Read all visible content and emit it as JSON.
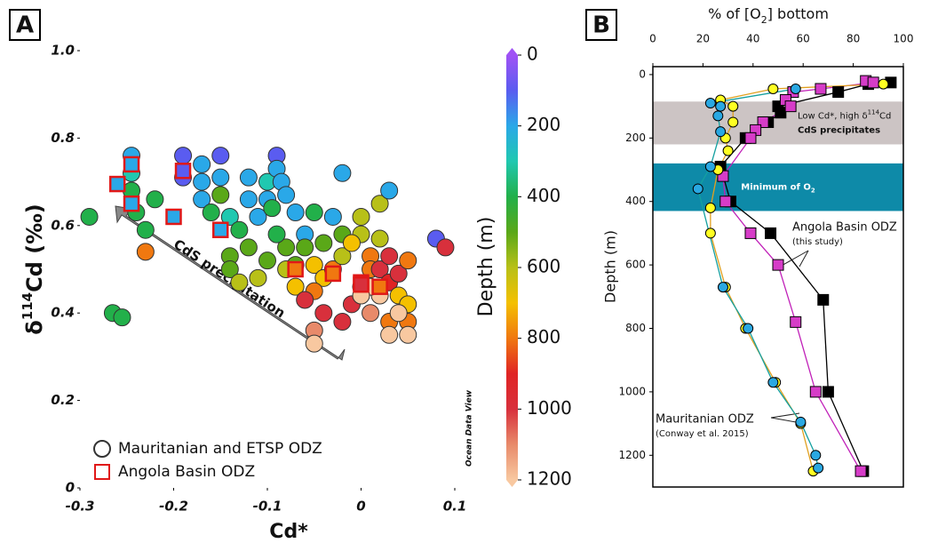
{
  "chart_data": [
    {
      "type": "scatter",
      "panel_label": "A",
      "x_label": "Cd*",
      "y_label": [
        "δ",
        "114",
        "Cd (‰)"
      ],
      "xlim": [
        -0.3,
        0.1
      ],
      "xticks": [
        -0.3,
        -0.2,
        -0.1,
        0,
        0.1
      ],
      "ylim": [
        0,
        1
      ],
      "yticks": [
        0,
        0.2,
        0.4,
        0.6,
        0.8,
        {
          "value": 1,
          "label": "1.0"
        }
      ],
      "colorbar_label": "Depth (m)",
      "clim": [
        0,
        1200
      ],
      "cticks": [
        0,
        200,
        400,
        600,
        800,
        1000,
        1200
      ],
      "colormap": [
        "#a052f5",
        "#5a5cf0",
        "#2aa8e8",
        "#20c8b0",
        "#22b04a",
        "#5aa818",
        "#b8c018",
        "#f4c000",
        "#f07810",
        "#e02424",
        "#d8303c",
        "#e88a6a",
        "#f8c8a0"
      ],
      "annotations": [
        "CdS precipitation",
        "Ocean Data View"
      ],
      "legend": "lower left",
      "series": [
        {
          "name": "Mauritanian and ETSP ODZ",
          "marker": "circle",
          "color": "#333333",
          "x": [
            -0.29,
            -0.265,
            -0.255,
            -0.245,
            -0.245,
            -0.245,
            -0.24,
            -0.23,
            -0.22,
            -0.23,
            -0.19,
            -0.19,
            -0.17,
            -0.17,
            -0.17,
            -0.15,
            -0.15,
            -0.15,
            -0.16,
            -0.14,
            -0.13,
            -0.12,
            -0.12,
            -0.1,
            -0.09,
            -0.09,
            -0.085,
            -0.1,
            -0.11,
            -0.095,
            -0.08,
            -0.07,
            -0.12,
            -0.14,
            -0.14,
            -0.13,
            -0.11,
            -0.1,
            -0.08,
            -0.09,
            -0.06,
            -0.06,
            -0.05,
            -0.04,
            -0.05,
            -0.03,
            -0.02,
            -0.02,
            -0.03,
            -0.05,
            -0.02,
            0,
            0,
            0.01,
            0.01,
            0,
            -0.01,
            -0.02,
            -0.04,
            -0.05,
            -0.05,
            0.01,
            0.02,
            0.02,
            0.02,
            0.02,
            0.03,
            0.03,
            0.03,
            0.03,
            0.03,
            0.04,
            0.04,
            0.05,
            0.05,
            0.05,
            0.05,
            0.08,
            0.09,
            -0.07,
            -0.06,
            -0.07,
            -0.04,
            -0.01,
            0.01,
            0,
            -0.08,
            0.04
          ],
          "values": [
            0.62,
            0.4,
            0.39,
            0.76,
            0.72,
            0.68,
            0.63,
            0.59,
            0.66,
            0.54,
            0.76,
            0.71,
            0.74,
            0.7,
            0.66,
            0.76,
            0.71,
            0.67,
            0.63,
            0.62,
            0.59,
            0.71,
            0.66,
            0.7,
            0.76,
            0.73,
            0.7,
            0.66,
            0.62,
            0.64,
            0.67,
            0.63,
            0.55,
            0.53,
            0.5,
            0.47,
            0.48,
            0.52,
            0.55,
            0.58,
            0.58,
            0.55,
            0.51,
            0.48,
            0.45,
            0.5,
            0.53,
            0.58,
            0.62,
            0.63,
            0.72,
            0.62,
            0.58,
            0.53,
            0.5,
            0.46,
            0.42,
            0.38,
            0.4,
            0.36,
            0.33,
            0.4,
            0.57,
            0.5,
            0.44,
            0.65,
            0.68,
            0.53,
            0.47,
            0.38,
            0.35,
            0.44,
            0.49,
            0.52,
            0.42,
            0.38,
            0.35,
            0.57,
            0.55,
            0.46,
            0.43,
            0.51,
            0.56,
            0.56,
            0.46,
            0.44,
            0.5,
            0.4
          ],
          "depth": [
            350,
            380,
            380,
            200,
            300,
            350,
            380,
            380,
            380,
            800,
            100,
            120,
            150,
            150,
            150,
            100,
            200,
            450,
            350,
            300,
            350,
            200,
            200,
            250,
            120,
            150,
            200,
            150,
            180,
            350,
            200,
            200,
            450,
            500,
            480,
            600,
            550,
            480,
            500,
            350,
            150,
            450,
            700,
            650,
            750,
            800,
            550,
            500,
            180,
            350,
            150,
            550,
            600,
            800,
            820,
            850,
            1000,
            1000,
            1000,
            1050,
            1200,
            1050,
            600,
            1000,
            1200,
            600,
            150,
            1000,
            900,
            800,
            1200,
            650,
            950,
            800,
            700,
            800,
            1200,
            120,
            1000,
            650,
            1000,
            500,
            500,
            700,
            1200,
            1200,
            550,
            1200
          ]
        },
        {
          "name": "Angola Basin ODZ",
          "marker": "square",
          "color": "#e01818",
          "x": [
            -0.26,
            -0.245,
            -0.245,
            -0.19,
            -0.2,
            -0.15,
            -0.07,
            -0.03,
            0,
            0,
            0.02
          ],
          "values": [
            0.695,
            0.74,
            0.65,
            0.725,
            0.62,
            0.59,
            0.5,
            0.49,
            0.47,
            0.465,
            0.46
          ],
          "depth": [
            200,
            150,
            200,
            100,
            150,
            200,
            800,
            800,
            900,
            1000,
            800
          ]
        }
      ]
    },
    {
      "type": "line",
      "panel_label": "B",
      "x_label": [
        "% of [O",
        "2",
        "] bottom"
      ],
      "y_label": "Depth (m)",
      "xlim": [
        0,
        100
      ],
      "xticks": [
        0,
        20,
        40,
        60,
        80,
        100
      ],
      "ylim": [
        -25,
        1300
      ],
      "yticks": [
        0,
        200,
        400,
        600,
        800,
        1000,
        1200
      ],
      "y_inverted": true,
      "bands": [
        {
          "range": [
            85,
            220
          ],
          "color": "#ccc4c4",
          "labels": [
            [
              "Low Cd*, high δ",
              "114",
              "Cd"
            ],
            [
              "CdS precipitates"
            ]
          ]
        },
        {
          "range": [
            280,
            430
          ],
          "color": "#0e8aa8",
          "labels": [
            [
              "Minimum of O",
              "2"
            ]
          ]
        }
      ],
      "annotations": [
        [
          "Angola Basin ODZ",
          "(this study)"
        ],
        [
          "Mauritanian ODZ",
          "(Conway et al. 2015)"
        ]
      ],
      "series": [
        {
          "name": "Angola Basin ODZ black",
          "marker": "square",
          "color": "#000000",
          "line_color": "#000000",
          "x": [
            95,
            86,
            74,
            50,
            51,
            46,
            37,
            27,
            31,
            47,
            68,
            70,
            84
          ],
          "values": [
            25,
            30,
            55,
            100,
            120,
            150,
            200,
            290,
            400,
            500,
            710,
            1000,
            1250
          ]
        },
        {
          "name": "Angola Basin ODZ magenta",
          "marker": "square",
          "color": "#d63cc8",
          "line_color": "#c020b8",
          "x": [
            85,
            88,
            67,
            56,
            53,
            55,
            44,
            41,
            39,
            28,
            29,
            39,
            50,
            57,
            65,
            83
          ],
          "values": [
            20,
            25,
            45,
            55,
            80,
            100,
            150,
            175,
            200,
            320,
            400,
            500,
            600,
            780,
            1000,
            1250
          ]
        },
        {
          "name": "Mauritanian ODZ yellow",
          "marker": "circle",
          "color": "#ffff22",
          "line_color": "#e0a020",
          "x": [
            92,
            48,
            27,
            32,
            32,
            29,
            30,
            26,
            23,
            23,
            29,
            37,
            49,
            59,
            64
          ],
          "values": [
            30,
            45,
            80,
            100,
            150,
            200,
            240,
            300,
            420,
            500,
            670,
            800,
            970,
            1100,
            1250
          ]
        },
        {
          "name": "Mauritanian ODZ blue",
          "marker": "circle",
          "color": "#2aa8e2",
          "line_color": "#14a0a0",
          "x": [
            57,
            23,
            27,
            26,
            27,
            23,
            18,
            28,
            38,
            48,
            59,
            65,
            66
          ],
          "values": [
            45,
            90,
            100,
            130,
            180,
            290,
            360,
            670,
            800,
            970,
            1095,
            1200,
            1240
          ]
        }
      ]
    }
  ]
}
